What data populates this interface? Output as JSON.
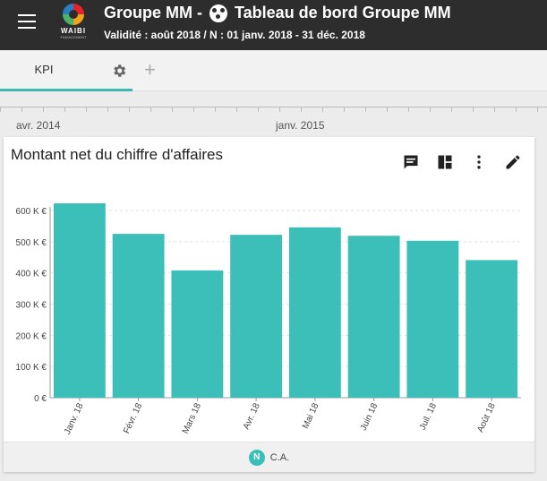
{
  "header": {
    "app_title": "Groupe MM -",
    "dashboard_title": "Tableau de bord Groupe MM",
    "subtitle": "Validité : août 2018 / N : 01 janv. 2018 - 31 déc. 2018",
    "logo_text": "WAIBI",
    "logo_sub": "FINANCEMENT"
  },
  "tabs": {
    "kpi_label": "KPI",
    "plus_label": "+"
  },
  "timeline": {
    "labels": [
      "avr. 2014",
      "janv. 2015"
    ]
  },
  "card": {
    "title": "Montant net du chiffre d'affaires"
  },
  "legend": {
    "badge": "N",
    "label": "C.A."
  },
  "colors": {
    "bar": "#3cbfb9",
    "accent": "#3cb8b1",
    "header_bg": "#2d2d2d"
  },
  "chart_data": {
    "type": "bar",
    "categories": [
      "Janv. 18",
      "Févr. 18",
      "Mars 18",
      "Avr. 18",
      "Mai 18",
      "Juin 18",
      "Juil. 18",
      "Août 18"
    ],
    "series": [
      {
        "name": "C.A.",
        "values": [
          623,
          525,
          408,
          522,
          546,
          519,
          503,
          441
        ]
      }
    ],
    "y_ticks": [
      "0 €",
      "100 K €",
      "200 K €",
      "300 K €",
      "400 K €",
      "500 K €",
      "600 K €"
    ],
    "ylim": [
      0,
      600
    ],
    "grid": true,
    "legend_position": "bottom"
  }
}
